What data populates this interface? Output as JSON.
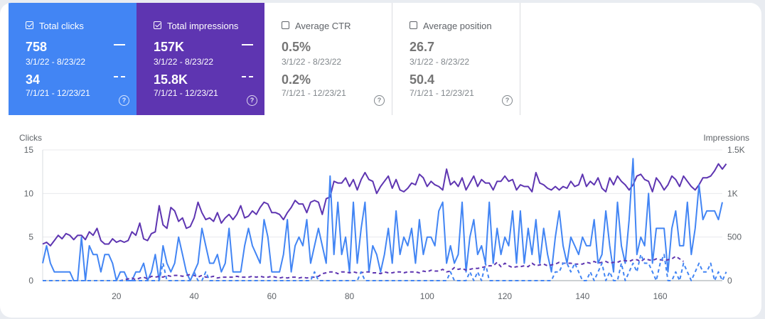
{
  "cards": [
    {
      "label": "Total clicks",
      "value1": "758",
      "date1": "3/1/22 - 8/23/22",
      "value2": "34",
      "date2": "7/1/21 - 12/23/21",
      "checked": true,
      "color": "#4285f4"
    },
    {
      "label": "Total impressions",
      "value1": "157K",
      "date1": "3/1/22 - 8/23/22",
      "value2": "15.8K",
      "date2": "7/1/21 - 12/23/21",
      "checked": true,
      "color": "#5e35b1"
    },
    {
      "label": "Average CTR",
      "value1": "0.5%",
      "date1": "3/1/22 - 8/23/22",
      "value2": "0.2%",
      "date2": "7/1/21 - 12/23/21",
      "checked": false
    },
    {
      "label": "Average position",
      "value1": "26.7",
      "date1": "3/1/22 - 8/23/22",
      "value2": "50.4",
      "date2": "7/1/21 - 12/23/21",
      "checked": false
    }
  ],
  "help_glyph": "?",
  "chart_data": {
    "type": "line",
    "ylabel": "Clicks",
    "y2label": "Impressions",
    "ylim": [
      0,
      15
    ],
    "y2lim": [
      0,
      1500
    ],
    "yticks": [
      "0",
      "5",
      "10",
      "15"
    ],
    "y2ticks": [
      "0",
      "500",
      "1K",
      "1.5K"
    ],
    "xticks": [
      20,
      40,
      60,
      80,
      100,
      120,
      140,
      160
    ],
    "xlim": [
      1,
      176
    ],
    "grid": true,
    "series": [
      {
        "axis": "y2",
        "style": "solid",
        "color": "#5e35b1",
        "x_start": 1,
        "values": [
          420,
          440,
          400,
          460,
          520,
          480,
          540,
          520,
          470,
          520,
          520,
          470,
          560,
          520,
          600,
          460,
          420,
          420,
          480,
          440,
          460,
          440,
          460,
          560,
          520,
          660,
          480,
          460,
          540,
          560,
          860,
          640,
          600,
          840,
          800,
          680,
          720,
          600,
          620,
          720,
          900,
          780,
          700,
          720,
          680,
          780,
          660,
          720,
          760,
          700,
          760,
          860,
          720,
          740,
          800,
          760,
          840,
          900,
          880,
          780,
          780,
          760,
          700,
          780,
          840,
          920,
          880,
          880,
          780,
          900,
          920,
          900,
          760,
          940,
          960,
          1140,
          1120,
          1120,
          1180,
          1080,
          1160,
          1040,
          1160,
          1240,
          1160,
          1140,
          1000,
          1080,
          1140,
          1200,
          1060,
          1160,
          1040,
          1020,
          1060,
          1120,
          1100,
          1220,
          1180,
          1080,
          1140,
          1100,
          1080,
          1040,
          1280,
          1100,
          1140,
          1080,
          1180,
          1040,
          1120,
          1200,
          1080,
          1160,
          1120,
          1120,
          1040,
          1140,
          1140,
          1200,
          1140,
          1160,
          1040,
          1100,
          1080,
          1080,
          1020,
          1240,
          1120,
          1100,
          1060,
          1040,
          1080,
          1040,
          1080,
          1060,
          1140,
          1080,
          1100,
          1220,
          1080,
          1140,
          1100,
          1180,
          1060,
          1020,
          1180,
          1100,
          1200,
          1140,
          1100,
          1040,
          1100,
          1200,
          1220,
          1160,
          1140,
          1020,
          1180,
          1120,
          1040,
          1100,
          1200,
          1160,
          1080,
          1200,
          1140,
          1080,
          1040,
          1100,
          1180,
          1180,
          1200,
          1260,
          1340,
          1280,
          1340
        ]
      },
      {
        "axis": "y",
        "style": "solid",
        "color": "#4285f4",
        "x_start": 1,
        "values": [
          2,
          4,
          2,
          1,
          1,
          1,
          1,
          1,
          0,
          0,
          5,
          0,
          4,
          3,
          3,
          1,
          3,
          3,
          2,
          0,
          1,
          1,
          0,
          0,
          1,
          1,
          2,
          0,
          1,
          3,
          0,
          4,
          2,
          1,
          2,
          5,
          3,
          1,
          0,
          1,
          2,
          6,
          4,
          2,
          2,
          3,
          1,
          2,
          6,
          1,
          1,
          1,
          4,
          6,
          4,
          3,
          2,
          7,
          5,
          1,
          1,
          1,
          3,
          7,
          1,
          4,
          5,
          4,
          7,
          2,
          4,
          6,
          4,
          2,
          12,
          3,
          9,
          3,
          5,
          1,
          9,
          2,
          6,
          9,
          1,
          4,
          3,
          1,
          3,
          6,
          2,
          8,
          3,
          5,
          4,
          6,
          2,
          7,
          3,
          5,
          5,
          4,
          8,
          9,
          2,
          4,
          2,
          3,
          9,
          1,
          5,
          7,
          3,
          4,
          2,
          9,
          2,
          6,
          3,
          5,
          4,
          8,
          2,
          8,
          2,
          6,
          3,
          7,
          2,
          6,
          3,
          1,
          5,
          8,
          4,
          2,
          5,
          4,
          3,
          5,
          4,
          4,
          7,
          2,
          3,
          8,
          4,
          1,
          9,
          4,
          2,
          7,
          14,
          3,
          5,
          4,
          10,
          2,
          6,
          6,
          6,
          1,
          6,
          8,
          4,
          4,
          9,
          3,
          6,
          11,
          7,
          8,
          8,
          8,
          7,
          9
        ]
      },
      {
        "axis": "y2",
        "style": "dashed",
        "color": "#5e35b1",
        "x_start": 1,
        "values": [
          0,
          0,
          0,
          0,
          0,
          0,
          0,
          0,
          0,
          0,
          0,
          0,
          0,
          0,
          0,
          0,
          0,
          0,
          0,
          0,
          0,
          10,
          20,
          30,
          10,
          30,
          40,
          20,
          50,
          40,
          50,
          40,
          60,
          50,
          60,
          60,
          50,
          60,
          70,
          60,
          40,
          60,
          40,
          40,
          50,
          30,
          40,
          40,
          40,
          40,
          50,
          40,
          40,
          40,
          50,
          40,
          50,
          40,
          40,
          50,
          40,
          30,
          40,
          30,
          40,
          40,
          30,
          40,
          30,
          40,
          40,
          50,
          80,
          90,
          100,
          100,
          80,
          100,
          100,
          90,
          100,
          90,
          90,
          100,
          100,
          90,
          90,
          80,
          100,
          90,
          90,
          100,
          100,
          90,
          100,
          100,
          100,
          90,
          110,
          100,
          120,
          110,
          110,
          130,
          100,
          110,
          150,
          130,
          140,
          120,
          130,
          140,
          140,
          150,
          160,
          170,
          170,
          210,
          160,
          200,
          170,
          150,
          160,
          160,
          170,
          160,
          200,
          170,
          180,
          190,
          170,
          180,
          190,
          210,
          200,
          200,
          200,
          190,
          190,
          190,
          210,
          200,
          220,
          200,
          210,
          220,
          200,
          210,
          210,
          230,
          230,
          220,
          240,
          240,
          220,
          250,
          240,
          230,
          250,
          240,
          230,
          240,
          250,
          280,
          250,
          220
        ]
      },
      {
        "axis": "y",
        "style": "dashed",
        "color": "#4285f4",
        "x_start": 1,
        "values": [
          0,
          0,
          0,
          0,
          0,
          0,
          0,
          0,
          0,
          0,
          0,
          0,
          0,
          0,
          0,
          0,
          0,
          0,
          0,
          0,
          0,
          0,
          0,
          0,
          0,
          0,
          0,
          0,
          0,
          0,
          0,
          2,
          0,
          0,
          0,
          0,
          0,
          0,
          0,
          1,
          0,
          0,
          1,
          0,
          0,
          0,
          0,
          0,
          0,
          0,
          0,
          0,
          0,
          0,
          0,
          0,
          0,
          0,
          0,
          0,
          0,
          0,
          0,
          0,
          0,
          0,
          0,
          0,
          0,
          0,
          1,
          0,
          0,
          0,
          0,
          0,
          0,
          0,
          0,
          0,
          0,
          0,
          1,
          0,
          0,
          0,
          0,
          0,
          0,
          0,
          0,
          0,
          0,
          0,
          0,
          0,
          0,
          0,
          0,
          0,
          0,
          0,
          0,
          0,
          0,
          1,
          0,
          0,
          0,
          0,
          1,
          0,
          1,
          0,
          2,
          0,
          0,
          0,
          0,
          0,
          0,
          0,
          0,
          0,
          0,
          0,
          0,
          0,
          0,
          0,
          0,
          0,
          1,
          1,
          2,
          2,
          1,
          2,
          1,
          0,
          0,
          1,
          0,
          1,
          2,
          0,
          1,
          0,
          0,
          2,
          0,
          1,
          2,
          1,
          3,
          2,
          2,
          1,
          0,
          2,
          3,
          0,
          0,
          1,
          0,
          2,
          1,
          0,
          1,
          2,
          1,
          1,
          2,
          0,
          1,
          0,
          1
        ]
      }
    ]
  }
}
